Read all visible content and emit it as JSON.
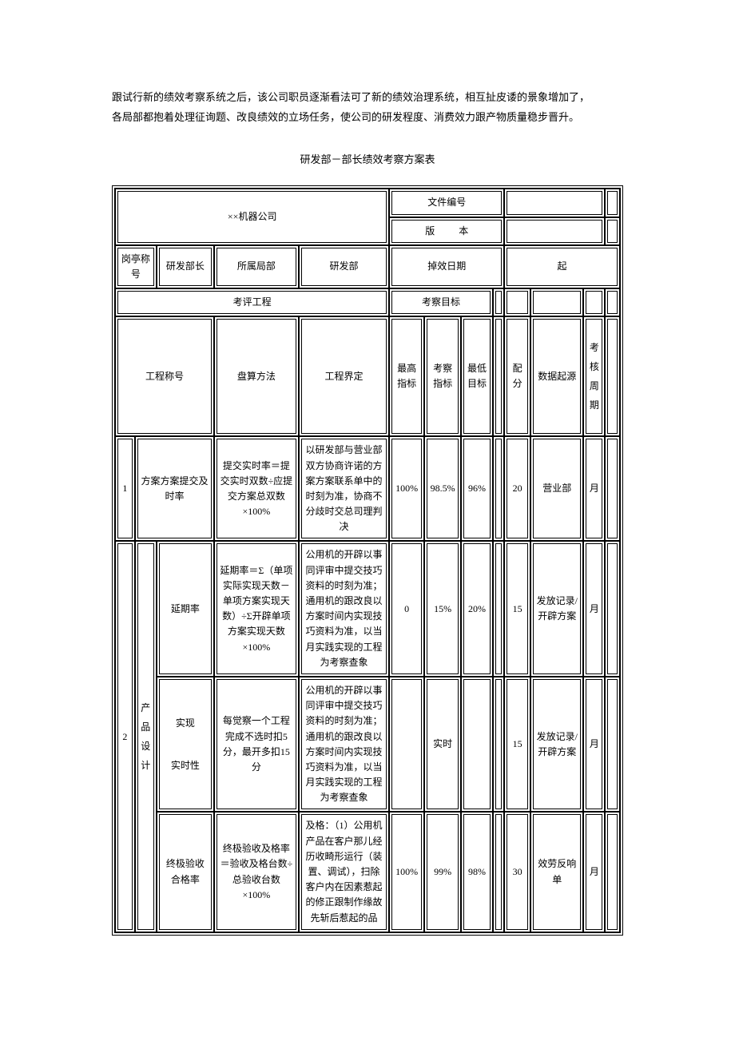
{
  "intro": {
    "line1": "跟试行新的绩效考察系统之后，该公司职员逐渐看法可了新的绩效治理系统，相互扯皮诿的景象增加了，",
    "line2": "各局部都抱着处理征询题、改良绩效的立场任务，使公司的研发程度、消费效力跟产物质量稳步晋升。"
  },
  "title": "研发部－部长绩效考察方案表",
  "header": {
    "company": "××机器公司",
    "doc_no_label": "文件编号",
    "version_label": "版",
    "version_label2": "本",
    "post_label": "岗亭称号",
    "post_value": "研发部长",
    "dept_label": "所属局部",
    "dept_value": "研发部",
    "eff_date_label": "掉效日期",
    "eff_date_value": "起",
    "eval_project": "考评工程",
    "eval_target": "考察目标"
  },
  "thead": {
    "name": "工程称号",
    "calc": "盘算方法",
    "def": "工程界定",
    "max": "最高指标",
    "idx": "考察指标",
    "min": "最低目标",
    "score": "配分",
    "src": "数据起源",
    "cycle": "考核周期"
  },
  "rows": {
    "r1": {
      "no": "1",
      "name": "方案方案提交及时率",
      "calc": "提交实时率＝提交实时双数÷应提交方案总双数×100%",
      "def": "以研发部与营业部双方协商许诺的方案方案联系单中的时刻为准，协商不分歧时交总司理判决",
      "max": "100%",
      "idx": "98.5%",
      "min": "96%",
      "score": "20",
      "src": "营业部",
      "cycle": "月"
    },
    "r2": {
      "no": "2",
      "group": "产品设计",
      "a": {
        "name": "延期率",
        "calc": "延期率＝Σ（单项实际实现天数－单项方案实现天数）÷Σ开辟单项方案实现天数×100%",
        "def": "公用机的开辟以事同评审中提交技巧资料的时刻为准；通用机的跟改良以方案时间内实现技巧资料为准，以当月实践实现的工程为考察查象",
        "max": "0",
        "idx": "15%",
        "min": "20%",
        "score": "15",
        "src": "发放记录/开辟方案",
        "cycle": "月"
      },
      "b": {
        "name": "实现实时性",
        "calc": "每觉察一个工程完成不选时扣5分，最开多扣15分",
        "def": "公用机的开辟以事同评审中提交技巧资料的时刻为准；通用机的跟改良以方案时间内实现技巧资料为准，以当月实践实现的工程为考察查象",
        "max": "",
        "idx": "实时",
        "min": "",
        "score": "15",
        "src": "发放记录/开辟方案",
        "cycle": "月"
      },
      "c": {
        "name": "终极验收合格率",
        "calc": "终极验收及格率＝验收及格台数÷总验收台数×100%",
        "def": "及格：（1）公用机产品在客户那儿经历收畸形运行（装置、调试），扫除客户内在因素惹起的修正跟制作缘故先斩后惹起的品",
        "max": "100%",
        "idx": "99%",
        "min": "98%",
        "score": "30",
        "src": "效劳反响单",
        "cycle": "月"
      }
    }
  }
}
